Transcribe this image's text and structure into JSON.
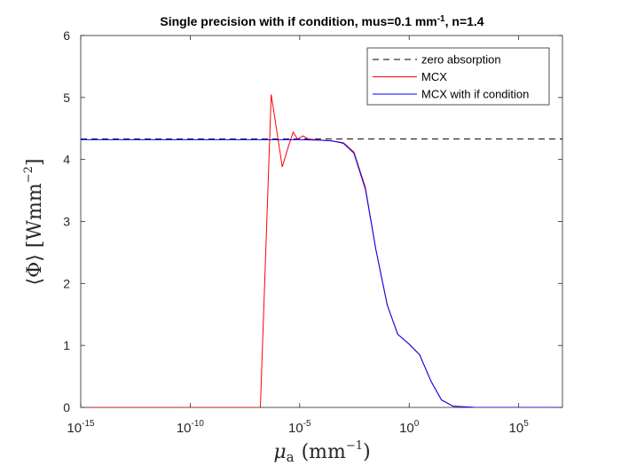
{
  "chart_data": {
    "type": "line",
    "title": "Single precision with if condition, mus=0.1 mm",
    "title_sup": "-1",
    "title_suffix": ", n=1.4",
    "xlabel_main": "μ",
    "xlabel_sub": "a",
    "xlabel_units": "(mm",
    "xlabel_units_sup": "−1",
    "xlabel_close": ")",
    "ylabel_main": "⟨Φ⟩ [Wmm",
    "ylabel_sup": "−2",
    "ylabel_close": "]",
    "x_scale": "log",
    "xlim": [
      1e-15,
      10000000.0
    ],
    "ylim": [
      0,
      6
    ],
    "grid": false,
    "legend_position": "top-right",
    "x_ticks": [
      {
        "value": 1e-15,
        "base": "10",
        "exp": "-15"
      },
      {
        "value": 1e-10,
        "base": "10",
        "exp": "-10"
      },
      {
        "value": 1e-05,
        "base": "10",
        "exp": "-5"
      },
      {
        "value": 1,
        "base": "10",
        "exp": "0"
      },
      {
        "value": 100000.0,
        "base": "10",
        "exp": "5"
      }
    ],
    "y_ticks": [
      {
        "value": 0,
        "label": "0"
      },
      {
        "value": 1,
        "label": "1"
      },
      {
        "value": 2,
        "label": "2"
      },
      {
        "value": 3,
        "label": "3"
      },
      {
        "value": 4,
        "label": "4"
      },
      {
        "value": 5,
        "label": "5"
      },
      {
        "value": 6,
        "label": "6"
      }
    ],
    "series": [
      {
        "name": "zero absorption",
        "color": "#000000",
        "dash": "dashed",
        "points": [
          [
            1e-15,
            4.33
          ],
          [
            10000000.0,
            4.33
          ]
        ]
      },
      {
        "name": "MCX",
        "color": "#ff0000",
        "dash": "solid",
        "points": [
          [
            1e-15,
            0
          ],
          [
            1e-08,
            0
          ],
          [
            1.6e-07,
            0
          ],
          [
            5e-07,
            5.05
          ],
          [
            1.6e-06,
            3.88
          ],
          [
            3e-06,
            4.2
          ],
          [
            5e-06,
            4.44
          ],
          [
            8e-06,
            4.33
          ],
          [
            1.4e-05,
            4.38
          ],
          [
            2.5e-05,
            4.33
          ],
          [
            0.0001,
            4.31
          ],
          [
            0.0003,
            4.3
          ],
          [
            0.001,
            4.27
          ],
          [
            0.003,
            4.12
          ],
          [
            0.01,
            3.55
          ],
          [
            0.03,
            2.55
          ],
          [
            0.1,
            1.65
          ],
          [
            0.3,
            1.18
          ],
          [
            1,
            1.02
          ],
          [
            3,
            0.85
          ],
          [
            10,
            0.42
          ],
          [
            30,
            0.12
          ],
          [
            100,
            0.02
          ],
          [
            1000,
            0
          ],
          [
            10000000.0,
            0
          ]
        ]
      },
      {
        "name": "MCX with if condition",
        "color": "#0000ff",
        "dash": "solid",
        "points": [
          [
            1e-15,
            4.32
          ],
          [
            1e-10,
            4.32
          ],
          [
            1e-05,
            4.32
          ],
          [
            0.0001,
            4.31
          ],
          [
            0.0003,
            4.3
          ],
          [
            0.001,
            4.26
          ],
          [
            0.003,
            4.1
          ],
          [
            0.01,
            3.52
          ],
          [
            0.03,
            2.55
          ],
          [
            0.1,
            1.65
          ],
          [
            0.3,
            1.18
          ],
          [
            1,
            1.02
          ],
          [
            3,
            0.85
          ],
          [
            10,
            0.42
          ],
          [
            30,
            0.12
          ],
          [
            100,
            0.02
          ],
          [
            1000,
            0
          ],
          [
            10000000.0,
            0
          ]
        ]
      }
    ]
  }
}
